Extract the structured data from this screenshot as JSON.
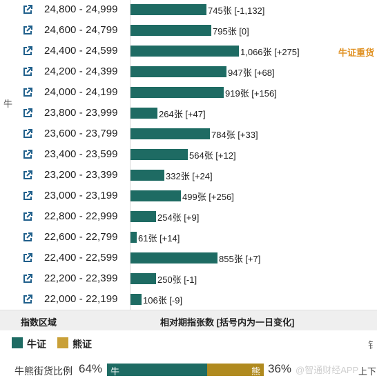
{
  "side_label": "牛",
  "rows": [
    {
      "range": "24,800 - 24,999",
      "count": 745,
      "label": "745张 [-1,132]",
      "note": ""
    },
    {
      "range": "24,600 - 24,799",
      "count": 795,
      "label": "795张 [0]",
      "note": ""
    },
    {
      "range": "24,400 - 24,599",
      "count": 1066,
      "label": "1,066张 [+275]",
      "note": "牛证重货"
    },
    {
      "range": "24,200 - 24,399",
      "count": 947,
      "label": "947张 [+68]",
      "note": ""
    },
    {
      "range": "24,000 - 24,199",
      "count": 919,
      "label": "919张 [+156]",
      "note": ""
    },
    {
      "range": "23,800 - 23,999",
      "count": 264,
      "label": "264张 [+47]",
      "note": ""
    },
    {
      "range": "23,600 - 23,799",
      "count": 784,
      "label": "784张 [+33]",
      "note": ""
    },
    {
      "range": "23,400 - 23,599",
      "count": 564,
      "label": "564张 [+12]",
      "note": ""
    },
    {
      "range": "23,200 - 23,399",
      "count": 332,
      "label": "332张 [+24]",
      "note": ""
    },
    {
      "range": "23,000 - 23,199",
      "count": 499,
      "label": "499张 [+256]",
      "note": ""
    },
    {
      "range": "22,800 - 22,999",
      "count": 254,
      "label": "254张 [+9]",
      "note": ""
    },
    {
      "range": "22,600 - 22,799",
      "count": 61,
      "label": "61张 [+14]",
      "note": ""
    },
    {
      "range": "22,400 - 22,599",
      "count": 855,
      "label": "855张 [+7]",
      "note": ""
    },
    {
      "range": "22,200 - 22,399",
      "count": 250,
      "label": "250张 [-1]",
      "note": ""
    },
    {
      "range": "22,000 - 22,199",
      "count": 106,
      "label": "106张 [-9]",
      "note": ""
    }
  ],
  "header": {
    "range_label": "指数区域",
    "count_label": "相对期指张数 [括号内为一日变化]"
  },
  "legend": {
    "bull_label": "牛证",
    "bear_label": "熊证",
    "edge_glyph": "钅"
  },
  "ratio": {
    "label": "牛熊街货比例",
    "bull_pct": "64%",
    "bull_fraction": 0.64,
    "bull_tag": "牛",
    "bear_tag": "熊",
    "bear_pct": "36%",
    "watermark": "@智通财经APP",
    "nav_text": "上下"
  },
  "colors": {
    "bull": "#1e6b63",
    "bear": "#b08a1f",
    "note": "#e09225",
    "icon": "#1f5f8b"
  },
  "icons": {
    "row_icon": "external-link-icon"
  }
}
